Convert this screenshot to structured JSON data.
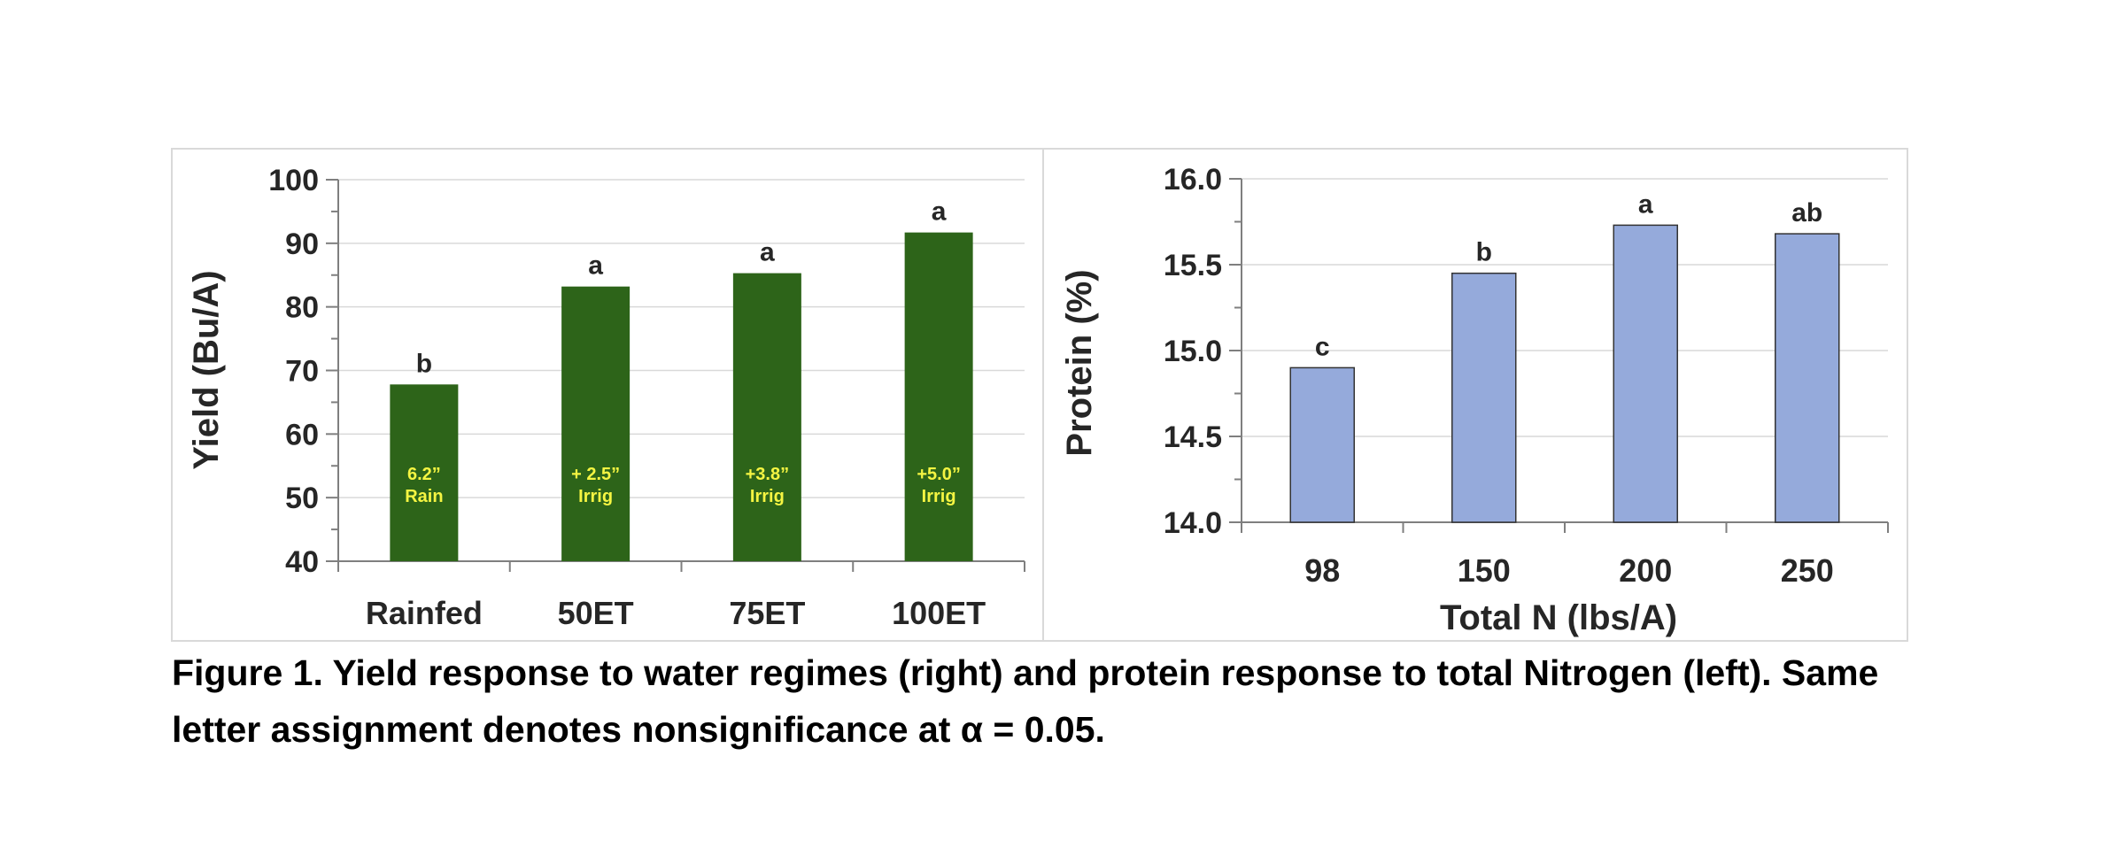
{
  "chart_data": [
    {
      "type": "bar",
      "categories": [
        "Rainfed",
        "50ET",
        "75ET",
        "100ET"
      ],
      "values": [
        67.8,
        83.2,
        85.3,
        91.7
      ],
      "significance_letters": [
        "b",
        "a",
        "a",
        "a"
      ],
      "bar_labels": [
        [
          "6.2”",
          "Rain"
        ],
        [
          "+ 2.5”",
          "Irrig"
        ],
        [
          "+3.8”",
          "Irrig"
        ],
        [
          "+5.0”",
          "Irrig"
        ]
      ],
      "title": "",
      "xlabel": "",
      "ylabel": "Yield (Bu/A)",
      "ylim": [
        40,
        100
      ],
      "yticks": [
        "40",
        "50",
        "60",
        "70",
        "80",
        "90",
        "100"
      ],
      "ytick_values": [
        40,
        50,
        60,
        70,
        80,
        90,
        100
      ],
      "grid": true,
      "colors": {
        "bar": "#2d6419",
        "bar_label": "#f5f542",
        "grid": "#d9d9d9",
        "axis": "#7f7f7f",
        "text": "#262626"
      }
    },
    {
      "type": "bar",
      "categories": [
        "98",
        "150",
        "200",
        "250"
      ],
      "values": [
        14.9,
        15.45,
        15.73,
        15.68
      ],
      "significance_letters": [
        "c",
        "b",
        "a",
        "ab"
      ],
      "title": "",
      "xlabel": "Total N (lbs/A)",
      "ylabel": "Protein (%)",
      "ylim": [
        14.0,
        16.0
      ],
      "yticks": [
        "14.0",
        "14.5",
        "15.0",
        "15.5",
        "16.0"
      ],
      "ytick_values": [
        14.0,
        14.5,
        15.0,
        15.5,
        16.0
      ],
      "grid": true,
      "colors": {
        "bar": "#95aadb",
        "bar_stroke": "#333333",
        "grid": "#d9d9d9",
        "axis": "#7f7f7f",
        "text": "#262626"
      }
    }
  ],
  "caption": {
    "line1": "Figure 1. Yield response to water regimes (right) and protein response to total Nitrogen (left). Same",
    "line2": "letter assignment denotes nonsignificance at α = 0.05."
  }
}
